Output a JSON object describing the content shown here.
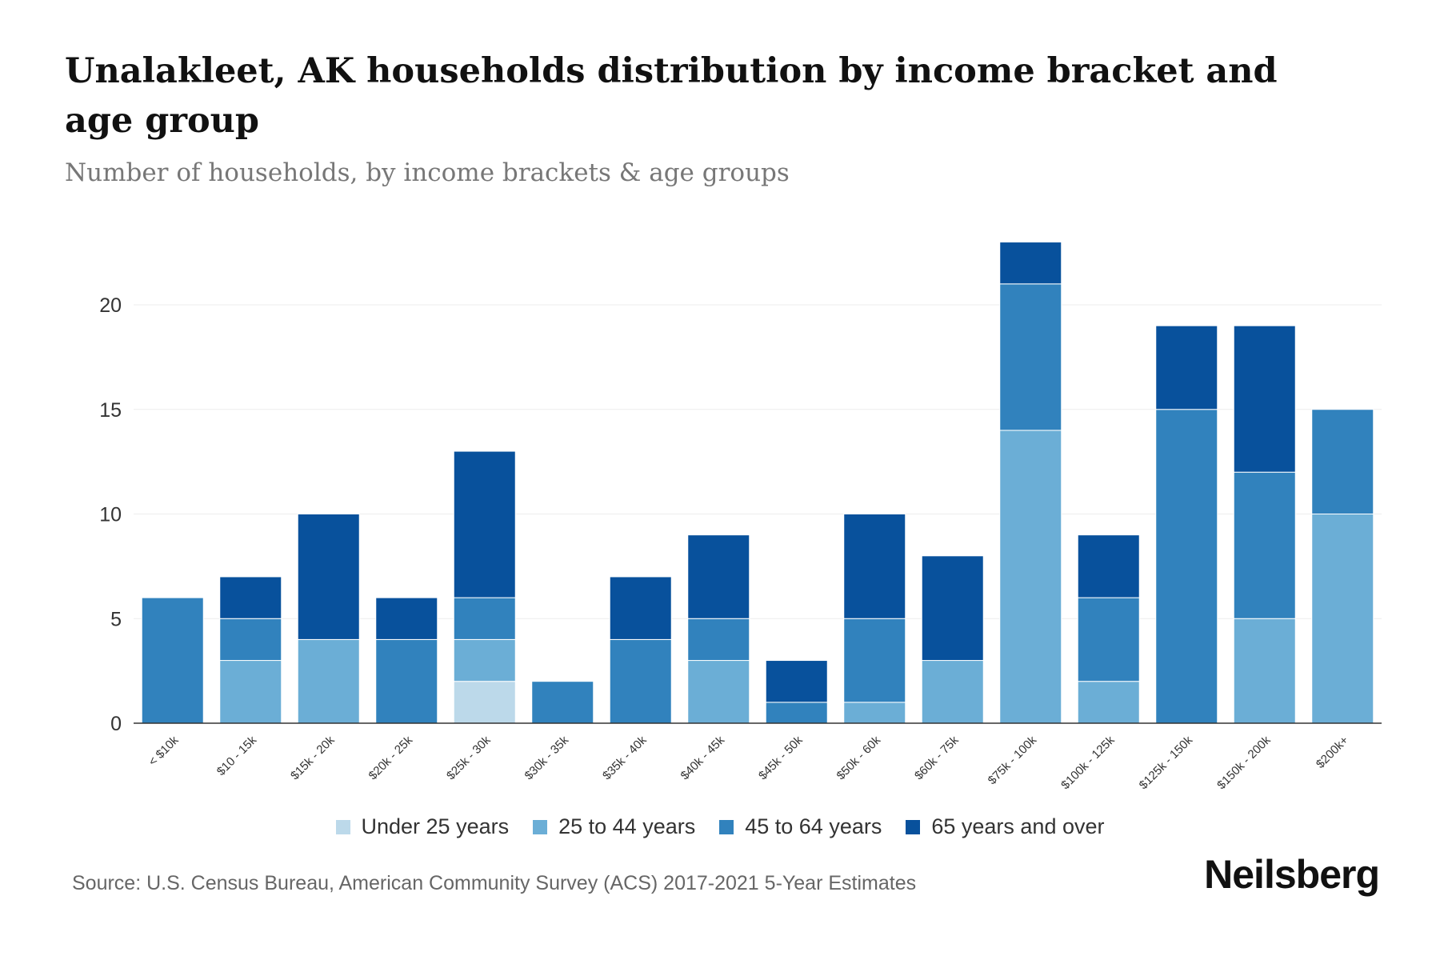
{
  "chart_data": {
    "type": "bar",
    "stacked": true,
    "title": "Unalakleet, AK households distribution by income bracket and age group",
    "subtitle": "Number of households, by income brackets & age groups",
    "categories": [
      "< $10k",
      "$10 - 15k",
      "$15k - 20k",
      "$20k - 25k",
      "$25k - 30k",
      "$30k - 35k",
      "$35k - 40k",
      "$40k - 45k",
      "$45k - 50k",
      "$50k - 60k",
      "$60k - 75k",
      "$75k - 100k",
      "$100k - 125k",
      "$125k - 150k",
      "$150k - 200k",
      "$200k+"
    ],
    "series": [
      {
        "name": "Under 25 years",
        "color": "#bcd9ea",
        "values": [
          0,
          0,
          0,
          0,
          2,
          0,
          0,
          0,
          0,
          0,
          0,
          0,
          0,
          0,
          0,
          0
        ]
      },
      {
        "name": "25 to 44 years",
        "color": "#6baed6",
        "values": [
          0,
          3,
          4,
          0,
          2,
          0,
          0,
          3,
          0,
          1,
          3,
          14,
          2,
          0,
          5,
          10
        ]
      },
      {
        "name": "45 to 64 years",
        "color": "#3182bd",
        "values": [
          6,
          2,
          0,
          4,
          2,
          2,
          4,
          2,
          1,
          4,
          0,
          7,
          4,
          15,
          7,
          5
        ]
      },
      {
        "name": "65 years and over",
        "color": "#08519c",
        "values": [
          0,
          2,
          6,
          2,
          7,
          0,
          3,
          4,
          2,
          5,
          5,
          2,
          3,
          4,
          7,
          0
        ]
      }
    ],
    "yticks": [
      0,
      5,
      10,
      15,
      20
    ],
    "ylim": [
      0,
      23
    ],
    "grid": true,
    "legend": "bottom"
  },
  "source": "Source: U.S. Census Bureau, American Community Survey (ACS) 2017-2021 5-Year Estimates",
  "brand": "Neilsberg"
}
